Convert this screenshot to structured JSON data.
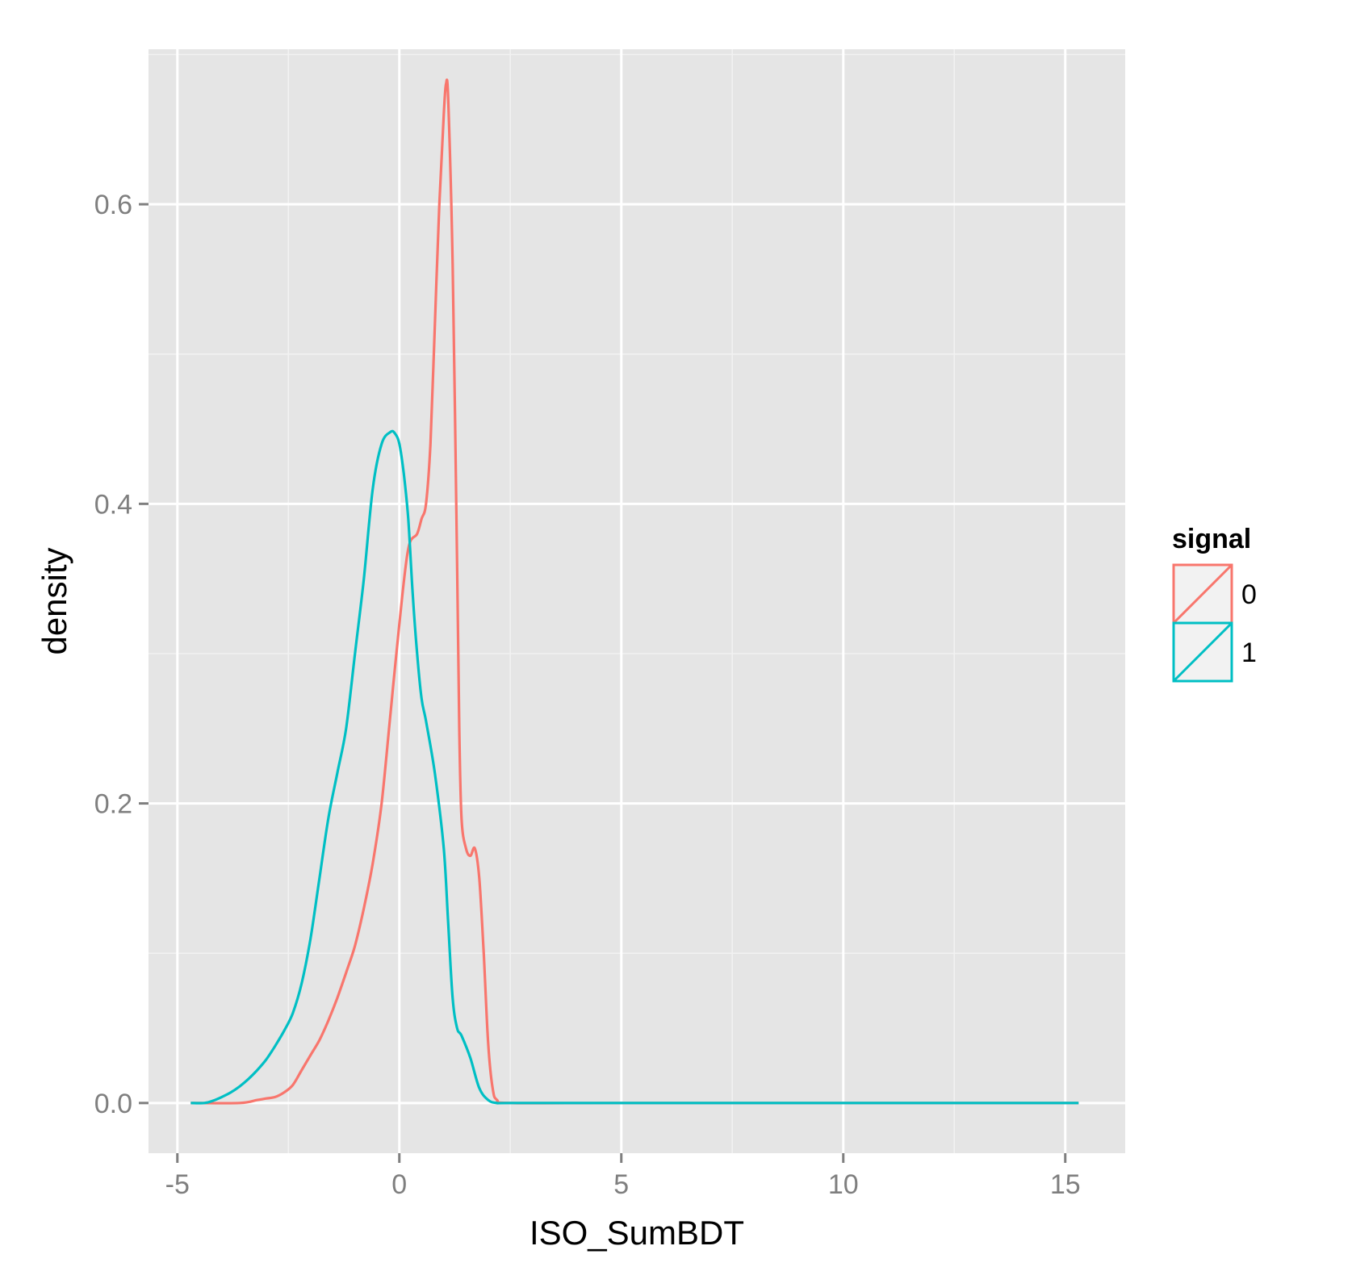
{
  "chart_data": {
    "type": "line",
    "title": "",
    "xlabel": "ISO_SumBDT",
    "ylabel": "density",
    "xlim": [
      -5.65,
      16.35
    ],
    "ylim": [
      -0.0335,
      0.7035
    ],
    "x_ticks": [
      -5,
      0,
      5,
      10,
      15
    ],
    "x_tick_labels": [
      "-5",
      "0",
      "5",
      "10",
      "15"
    ],
    "y_ticks": [
      0.0,
      0.2,
      0.4,
      0.6
    ],
    "y_tick_labels": [
      "0.0",
      "0.2",
      "0.4",
      "0.6"
    ],
    "grid": true,
    "legend": {
      "title": "signal",
      "position": "right"
    },
    "colors": {
      "panel": "#e5e5e5",
      "grid_major": "#ffffff",
      "grid_minor": "#f2f2f2",
      "legend_key_bg": "#f2f2f2"
    },
    "series": [
      {
        "name": "0",
        "color": "#f8766d",
        "x": [
          -4.7,
          -3.6,
          -3.2,
          -3.0,
          -2.8,
          -2.6,
          -2.4,
          -2.2,
          -2.0,
          -1.8,
          -1.6,
          -1.4,
          -1.2,
          -1.0,
          -0.8,
          -0.6,
          -0.4,
          -0.2,
          0.0,
          0.2,
          0.4,
          0.5,
          0.6,
          0.7,
          0.8,
          0.9,
          1.0,
          1.05,
          1.1,
          1.2,
          1.3,
          1.35,
          1.4,
          1.5,
          1.6,
          1.7,
          1.8,
          1.9,
          2.0,
          2.1,
          2.2,
          2.5,
          5,
          10,
          15.3
        ],
        "y": [
          0.0,
          0.0,
          0.002,
          0.003,
          0.004,
          0.007,
          0.012,
          0.022,
          0.032,
          0.042,
          0.055,
          0.07,
          0.087,
          0.105,
          0.13,
          0.16,
          0.2,
          0.26,
          0.32,
          0.37,
          0.38,
          0.39,
          0.4,
          0.44,
          0.52,
          0.6,
          0.66,
          0.68,
          0.67,
          0.56,
          0.36,
          0.25,
          0.19,
          0.17,
          0.165,
          0.17,
          0.15,
          0.1,
          0.04,
          0.01,
          0.002,
          0.0,
          0.0,
          0.0,
          0.0
        ]
      },
      {
        "name": "1",
        "color": "#00bfc4",
        "x": [
          -4.7,
          -4.4,
          -4.2,
          -4.0,
          -3.8,
          -3.6,
          -3.4,
          -3.2,
          -3.0,
          -2.8,
          -2.6,
          -2.4,
          -2.2,
          -2.0,
          -1.8,
          -1.6,
          -1.4,
          -1.2,
          -1.0,
          -0.8,
          -0.6,
          -0.4,
          -0.2,
          -0.1,
          0.0,
          0.1,
          0.2,
          0.3,
          0.4,
          0.5,
          0.6,
          0.8,
          1.0,
          1.1,
          1.2,
          1.3,
          1.4,
          1.6,
          1.8,
          2.0,
          2.2,
          2.5,
          5,
          10,
          15.3
        ],
        "y": [
          0.0,
          0.0,
          0.0015,
          0.004,
          0.007,
          0.011,
          0.016,
          0.022,
          0.029,
          0.038,
          0.048,
          0.06,
          0.08,
          0.11,
          0.15,
          0.19,
          0.22,
          0.25,
          0.3,
          0.35,
          0.41,
          0.44,
          0.448,
          0.447,
          0.44,
          0.42,
          0.39,
          0.34,
          0.3,
          0.27,
          0.255,
          0.22,
          0.17,
          0.12,
          0.07,
          0.05,
          0.045,
          0.03,
          0.01,
          0.002,
          0.0,
          0.0,
          0.0,
          0.0,
          0.0
        ]
      }
    ]
  }
}
